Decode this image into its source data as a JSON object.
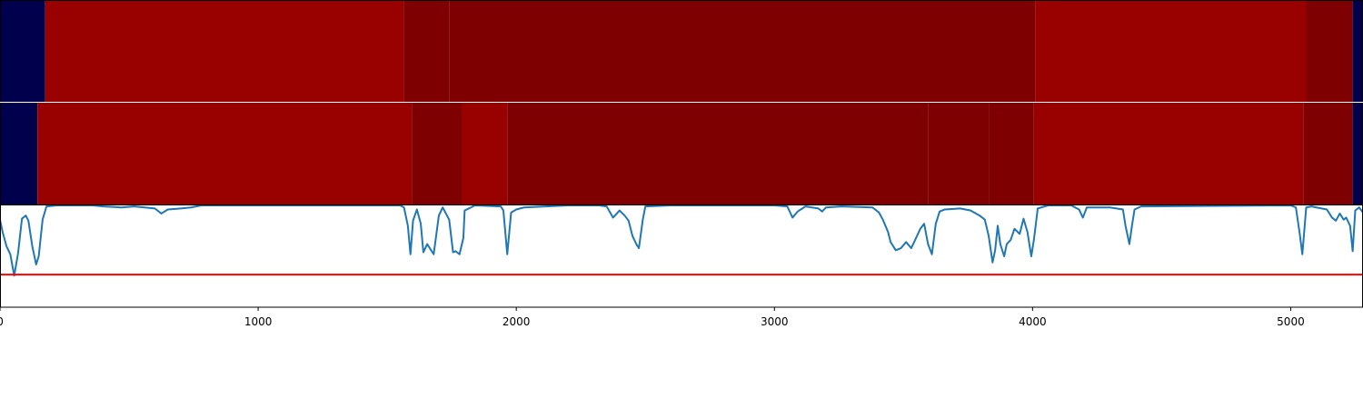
{
  "chart_data": {
    "type": "heatmap",
    "x_range": [
      0,
      5280
    ],
    "x_ticks": [
      0,
      1000,
      2000,
      3000,
      4000,
      5000
    ],
    "x_tick_labels": [
      "0",
      "1000",
      "2000",
      "3000",
      "4000",
      "5000"
    ],
    "palette": {
      "low": "#00004c",
      "mid": "#990000",
      "high": "#7f0000",
      "line": "#1f77b4",
      "threshold": "#ff0000",
      "separator": "#ffffff"
    },
    "heat_bands": [
      {
        "name": "band-1",
        "segments": [
          {
            "start": 0,
            "end": 175,
            "level": "low"
          },
          {
            "start": 175,
            "end": 1565,
            "level": "mid"
          },
          {
            "start": 1565,
            "end": 1740,
            "level": "high"
          },
          {
            "start": 1740,
            "end": 4010,
            "level": "high"
          },
          {
            "start": 4010,
            "end": 5060,
            "level": "mid"
          },
          {
            "start": 5060,
            "end": 5240,
            "level": "high"
          },
          {
            "start": 5240,
            "end": 5280,
            "level": "low"
          }
        ]
      },
      {
        "name": "band-2",
        "segments": [
          {
            "start": 0,
            "end": 145,
            "level": "low"
          },
          {
            "start": 145,
            "end": 1595,
            "level": "mid"
          },
          {
            "start": 1595,
            "end": 1790,
            "level": "high"
          },
          {
            "start": 1790,
            "end": 1965,
            "level": "mid"
          },
          {
            "start": 1965,
            "end": 3595,
            "level": "high"
          },
          {
            "start": 3595,
            "end": 3830,
            "level": "high"
          },
          {
            "start": 3830,
            "end": 4005,
            "level": "high"
          },
          {
            "start": 4005,
            "end": 5050,
            "level": "mid"
          },
          {
            "start": 5050,
            "end": 5240,
            "level": "high"
          },
          {
            "start": 5240,
            "end": 5280,
            "level": "low"
          }
        ]
      }
    ],
    "line_series": {
      "ylim": [
        0,
        1
      ],
      "threshold": 0.32,
      "points": [
        [
          0,
          0.86
        ],
        [
          10,
          0.74
        ],
        [
          25,
          0.6
        ],
        [
          40,
          0.52
        ],
        [
          55,
          0.31
        ],
        [
          70,
          0.53
        ],
        [
          85,
          0.87
        ],
        [
          100,
          0.9
        ],
        [
          110,
          0.85
        ],
        [
          125,
          0.6
        ],
        [
          140,
          0.42
        ],
        [
          150,
          0.5
        ],
        [
          165,
          0.86
        ],
        [
          180,
          0.99
        ],
        [
          220,
          1.0
        ],
        [
          300,
          1.0
        ],
        [
          360,
          1.0
        ],
        [
          400,
          0.99
        ],
        [
          470,
          0.98
        ],
        [
          520,
          0.99
        ],
        [
          560,
          0.98
        ],
        [
          600,
          0.97
        ],
        [
          625,
          0.92
        ],
        [
          650,
          0.96
        ],
        [
          700,
          0.97
        ],
        [
          740,
          0.98
        ],
        [
          780,
          1.0
        ],
        [
          1200,
          1.0
        ],
        [
          1420,
          1.0
        ],
        [
          1550,
          1.0
        ],
        [
          1565,
          0.98
        ],
        [
          1580,
          0.8
        ],
        [
          1590,
          0.52
        ],
        [
          1600,
          0.85
        ],
        [
          1615,
          0.96
        ],
        [
          1630,
          0.82
        ],
        [
          1640,
          0.54
        ],
        [
          1655,
          0.62
        ],
        [
          1665,
          0.58
        ],
        [
          1680,
          0.52
        ],
        [
          1700,
          0.9
        ],
        [
          1715,
          0.98
        ],
        [
          1740,
          0.86
        ],
        [
          1755,
          0.54
        ],
        [
          1765,
          0.55
        ],
        [
          1780,
          0.52
        ],
        [
          1795,
          0.68
        ],
        [
          1800,
          0.95
        ],
        [
          1840,
          1.0
        ],
        [
          1940,
          0.99
        ],
        [
          1950,
          0.95
        ],
        [
          1965,
          0.52
        ],
        [
          1980,
          0.93
        ],
        [
          2000,
          0.96
        ],
        [
          2030,
          0.98
        ],
        [
          2200,
          1.0
        ],
        [
          2320,
          1.0
        ],
        [
          2350,
          0.99
        ],
        [
          2375,
          0.88
        ],
        [
          2400,
          0.95
        ],
        [
          2420,
          0.9
        ],
        [
          2435,
          0.85
        ],
        [
          2450,
          0.7
        ],
        [
          2465,
          0.62
        ],
        [
          2475,
          0.58
        ],
        [
          2490,
          0.86
        ],
        [
          2500,
          0.99
        ],
        [
          2600,
          1.0
        ],
        [
          3000,
          1.0
        ],
        [
          3050,
          0.99
        ],
        [
          3070,
          0.88
        ],
        [
          3090,
          0.94
        ],
        [
          3120,
          0.99
        ],
        [
          3170,
          0.97
        ],
        [
          3185,
          0.94
        ],
        [
          3200,
          0.98
        ],
        [
          3260,
          0.99
        ],
        [
          3380,
          0.98
        ],
        [
          3405,
          0.93
        ],
        [
          3420,
          0.86
        ],
        [
          3440,
          0.74
        ],
        [
          3450,
          0.64
        ],
        [
          3470,
          0.56
        ],
        [
          3490,
          0.58
        ],
        [
          3510,
          0.64
        ],
        [
          3530,
          0.58
        ],
        [
          3545,
          0.66
        ],
        [
          3565,
          0.77
        ],
        [
          3580,
          0.82
        ],
        [
          3595,
          0.62
        ],
        [
          3610,
          0.52
        ],
        [
          3625,
          0.82
        ],
        [
          3640,
          0.94
        ],
        [
          3660,
          0.96
        ],
        [
          3720,
          0.97
        ],
        [
          3760,
          0.95
        ],
        [
          3795,
          0.9
        ],
        [
          3815,
          0.86
        ],
        [
          3830,
          0.7
        ],
        [
          3845,
          0.44
        ],
        [
          3855,
          0.56
        ],
        [
          3865,
          0.8
        ],
        [
          3875,
          0.62
        ],
        [
          3890,
          0.5
        ],
        [
          3900,
          0.62
        ],
        [
          3915,
          0.66
        ],
        [
          3930,
          0.77
        ],
        [
          3950,
          0.72
        ],
        [
          3965,
          0.87
        ],
        [
          3980,
          0.74
        ],
        [
          3995,
          0.5
        ],
        [
          4005,
          0.66
        ],
        [
          4020,
          0.97
        ],
        [
          4060,
          1.0
        ],
        [
          4150,
          1.0
        ],
        [
          4180,
          0.96
        ],
        [
          4195,
          0.88
        ],
        [
          4210,
          0.98
        ],
        [
          4300,
          0.98
        ],
        [
          4350,
          0.96
        ],
        [
          4360,
          0.8
        ],
        [
          4375,
          0.62
        ],
        [
          4385,
          0.8
        ],
        [
          4395,
          0.96
        ],
        [
          4420,
          0.99
        ],
        [
          5000,
          1.0
        ],
        [
          5020,
          0.98
        ],
        [
          5035,
          0.72
        ],
        [
          5045,
          0.52
        ],
        [
          5060,
          0.98
        ],
        [
          5080,
          0.99
        ],
        [
          5140,
          0.96
        ],
        [
          5160,
          0.88
        ],
        [
          5175,
          0.85
        ],
        [
          5190,
          0.92
        ],
        [
          5205,
          0.86
        ],
        [
          5215,
          0.88
        ],
        [
          5230,
          0.8
        ],
        [
          5240,
          0.55
        ],
        [
          5250,
          0.95
        ],
        [
          5265,
          0.98
        ],
        [
          5280,
          0.93
        ]
      ]
    }
  }
}
